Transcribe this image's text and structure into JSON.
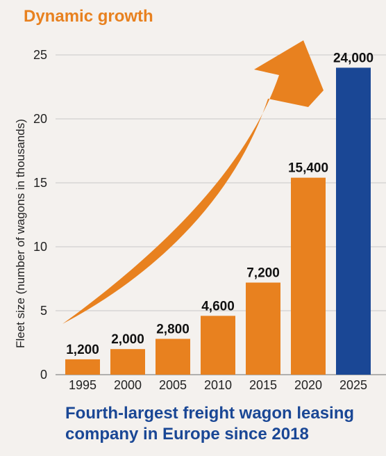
{
  "header": {
    "title": "Dynamic growth",
    "subtitle": "Fourth-largest freight wagon leasing company in Europe since 2018"
  },
  "chart_data": {
    "type": "bar",
    "title": "Dynamic growth",
    "ylabel": "Fleet size (number of wagons in thousands)",
    "xlabel": "",
    "categories": [
      "1995",
      "2000",
      "2005",
      "2010",
      "2015",
      "2020",
      "2025"
    ],
    "values": [
      1.2,
      2.0,
      2.8,
      4.6,
      7.2,
      15.4,
      24.0
    ],
    "data_labels": [
      "1,200",
      "2,000",
      "2,800",
      "4,600",
      "7,200",
      "15,400",
      "24,000"
    ],
    "yticks": [
      0,
      5,
      10,
      15,
      20,
      25
    ],
    "ylim": [
      0,
      25
    ],
    "grid": true,
    "legend": "none",
    "colors": {
      "bar": "#e8811f",
      "highlight_bar": "#1a4795",
      "arrow": "#e8811f",
      "grid": "#c8c8c8",
      "title": "#e8811f",
      "subtitle": "#1a4795"
    },
    "highlight_index": 6
  }
}
